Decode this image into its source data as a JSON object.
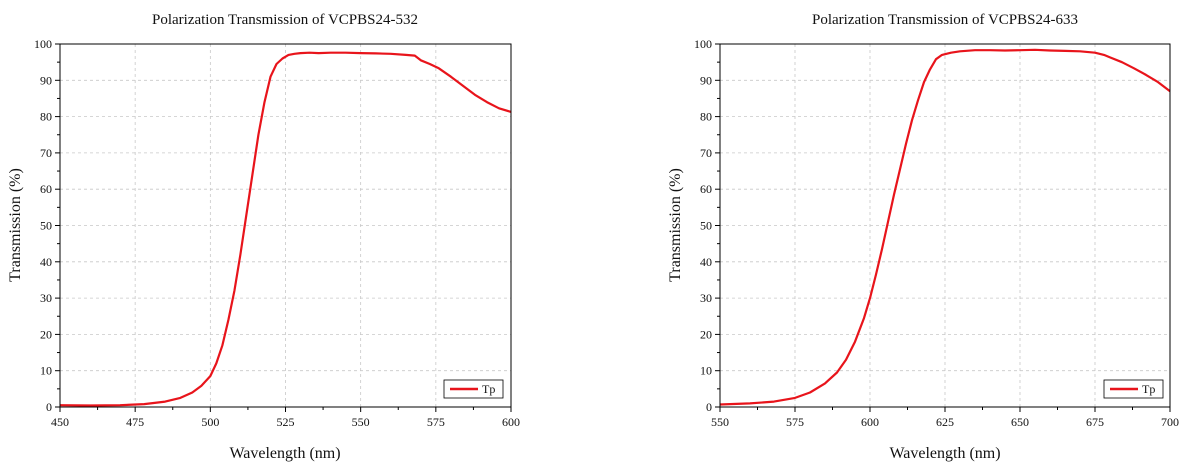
{
  "chart_data": [
    {
      "type": "line",
      "title": "Polarization Transmission of VCPBS24-532",
      "xlabel": "Wavelength (nm)",
      "ylabel": "Transmission (%)",
      "xlim": [
        450,
        600
      ],
      "ylim": [
        0,
        100
      ],
      "xticks": [
        450,
        475,
        500,
        525,
        550,
        575,
        600
      ],
      "yticks": [
        0,
        10,
        20,
        30,
        40,
        50,
        60,
        70,
        80,
        90,
        100
      ],
      "grid": true,
      "legend_position": "bottom-right",
      "series": [
        {
          "name": "Tp",
          "color": "#e8141b",
          "x": [
            450,
            460,
            470,
            478,
            485,
            490,
            494,
            497,
            500,
            502,
            504,
            506,
            508,
            510,
            512,
            514,
            516,
            518,
            520,
            522,
            524,
            526,
            528,
            530,
            533,
            536,
            540,
            545,
            550,
            555,
            560,
            565,
            568,
            570,
            573,
            576,
            580,
            584,
            588,
            592,
            596,
            600
          ],
          "y": [
            0.5,
            0.4,
            0.5,
            0.8,
            1.5,
            2.5,
            4,
            5.8,
            8.5,
            12,
            17,
            24,
            32,
            42,
            53,
            64,
            75,
            84,
            91,
            94.5,
            96,
            97,
            97.3,
            97.5,
            97.6,
            97.5,
            97.6,
            97.6,
            97.5,
            97.4,
            97.3,
            97,
            96.8,
            95.5,
            94.5,
            93.3,
            91,
            88.5,
            86,
            84,
            82.3,
            81.3
          ]
        }
      ]
    },
    {
      "type": "line",
      "title": "Polarization Transmission of VCPBS24-633",
      "xlabel": "Wavelength (nm)",
      "ylabel": "Transmission (%)",
      "xlim": [
        550,
        700
      ],
      "ylim": [
        0,
        100
      ],
      "xticks": [
        550,
        575,
        600,
        625,
        650,
        675,
        700
      ],
      "yticks": [
        0,
        10,
        20,
        30,
        40,
        50,
        60,
        70,
        80,
        90,
        100
      ],
      "grid": true,
      "legend_position": "bottom-right",
      "series": [
        {
          "name": "Tp",
          "color": "#e8141b",
          "x": [
            550,
            560,
            568,
            575,
            580,
            585,
            589,
            592,
            595,
            598,
            600,
            602,
            604,
            606,
            608,
            610,
            612,
            614,
            616,
            618,
            620,
            622,
            624,
            627,
            630,
            635,
            640,
            645,
            650,
            655,
            660,
            665,
            670,
            675,
            678,
            680,
            684,
            688,
            692,
            696,
            700
          ],
          "y": [
            0.7,
            1.0,
            1.5,
            2.5,
            4,
            6.5,
            9.5,
            13,
            18,
            24.5,
            30,
            36.5,
            43.5,
            51,
            58.5,
            65.5,
            72.5,
            79,
            84.5,
            89.5,
            93,
            95.8,
            97,
            97.6,
            98,
            98.3,
            98.3,
            98.2,
            98.3,
            98.4,
            98.2,
            98.1,
            98,
            97.6,
            97,
            96.3,
            95,
            93.3,
            91.5,
            89.5,
            87
          ]
        }
      ]
    }
  ]
}
